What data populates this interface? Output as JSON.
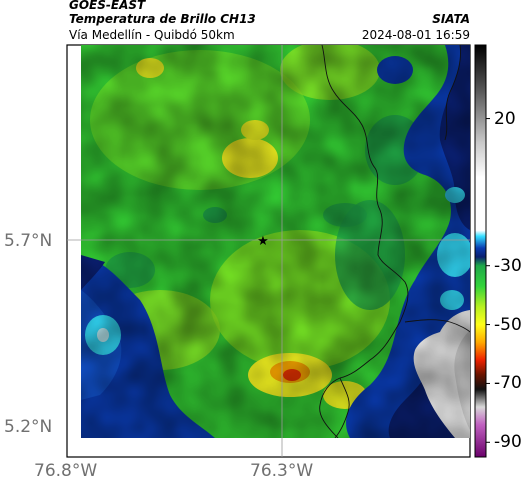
{
  "header": {
    "satellite": "GOES-EAST",
    "product": "Temperatura de Brillo CH13",
    "route": "Vía Medellín - Quibdó 50km",
    "org": "SIATA",
    "datetime": "2024-08-01 16:59"
  },
  "map": {
    "lat_ticks": [
      "5.7°N",
      "5.2°N"
    ],
    "lon_ticks": [
      "76.8°W",
      "76.3°W"
    ],
    "gridline_color": "#9a9a9a",
    "marker": "star-icon"
  },
  "colorbar": {
    "labels": [
      "20",
      "-30",
      "-50",
      "-70",
      "-90"
    ],
    "range": [
      -95,
      45
    ],
    "label_values": [
      20,
      -30,
      -50,
      -70,
      -90
    ],
    "stops": [
      {
        "v": 45,
        "c": "#000000"
      },
      {
        "v": 30,
        "c": "#555555"
      },
      {
        "v": 12,
        "c": "#c8c8c8"
      },
      {
        "v": 0,
        "c": "#ffffff"
      },
      {
        "v": -18,
        "c": "#ffffff"
      },
      {
        "v": -20,
        "c": "#33dfff"
      },
      {
        "v": -24,
        "c": "#0a3bb0"
      },
      {
        "v": -27,
        "c": "#0a1f70"
      },
      {
        "v": -30,
        "c": "#1fa84a"
      },
      {
        "v": -37,
        "c": "#33d43a"
      },
      {
        "v": -44,
        "c": "#b8f020"
      },
      {
        "v": -50,
        "c": "#ffff1a"
      },
      {
        "v": -56,
        "c": "#ffaa00"
      },
      {
        "v": -62,
        "c": "#ee2200"
      },
      {
        "v": -67,
        "c": "#6a1400"
      },
      {
        "v": -72,
        "c": "#111111"
      },
      {
        "v": -78,
        "c": "#d8d8d8"
      },
      {
        "v": -84,
        "c": "#c060c0"
      },
      {
        "v": -95,
        "c": "#6a006a"
      }
    ]
  }
}
